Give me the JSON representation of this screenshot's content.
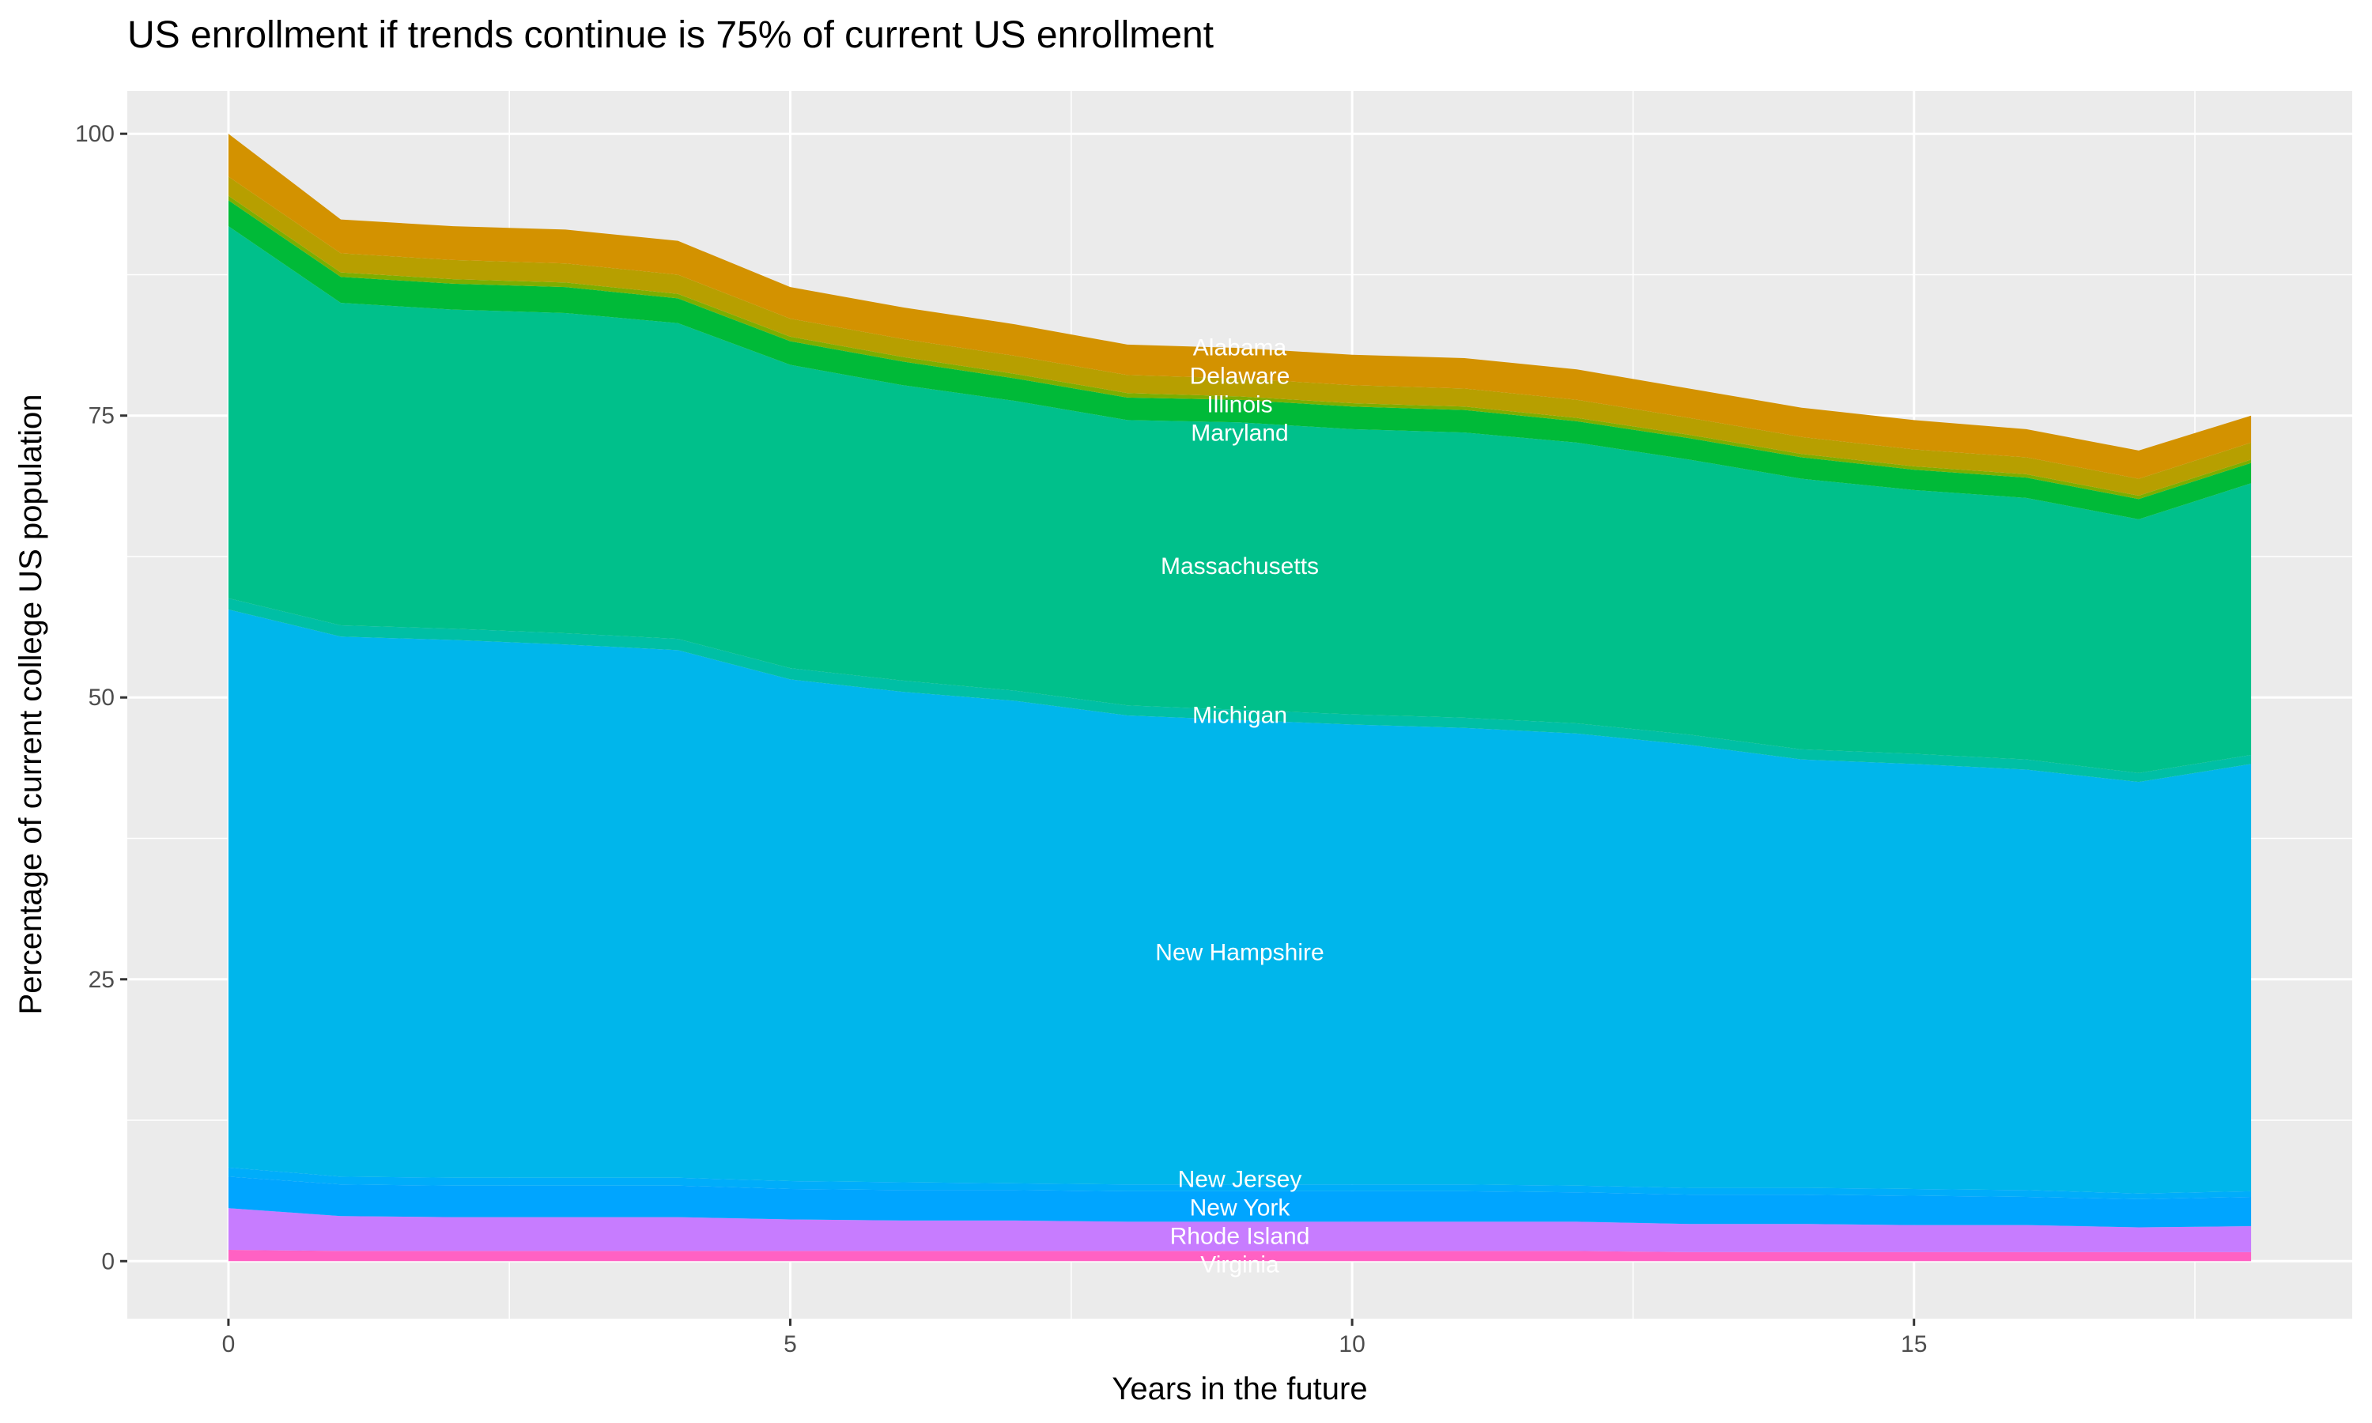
{
  "chart_data": {
    "type": "area",
    "stacked": true,
    "title": "US enrollment if trends continue is 75% of current US enrollment",
    "xlabel": "Years in the future",
    "ylabel": "Percentage of current college US population",
    "xlim": [
      -0.9,
      18.9
    ],
    "ylim": [
      -5.1,
      103.8
    ],
    "xticks": [
      0,
      5,
      10,
      15
    ],
    "yticks": [
      0,
      25,
      50,
      75,
      100
    ],
    "grid": true,
    "legend": "none",
    "label_x": 9,
    "x": [
      0,
      1,
      2,
      3,
      4,
      5,
      6,
      7,
      8,
      9,
      10,
      11,
      12,
      13,
      14,
      15,
      16,
      17,
      18
    ],
    "series": [
      {
        "name": "Virginia",
        "color": "#FF61C3",
        "values": [
          1.0,
          0.9,
          0.9,
          0.9,
          0.9,
          0.9,
          0.9,
          0.9,
          0.9,
          0.9,
          0.9,
          0.9,
          0.9,
          0.8,
          0.8,
          0.8,
          0.8,
          0.8,
          0.8
        ]
      },
      {
        "name": "Rhode Island",
        "color": "#C77CFF",
        "values": [
          3.7,
          3.1,
          3.0,
          3.0,
          3.0,
          2.8,
          2.7,
          2.7,
          2.6,
          2.6,
          2.6,
          2.6,
          2.6,
          2.5,
          2.5,
          2.4,
          2.4,
          2.2,
          2.3
        ]
      },
      {
        "name": "New York",
        "color": "#00A5FF",
        "values": [
          2.8,
          2.8,
          2.8,
          2.8,
          2.8,
          2.7,
          2.7,
          2.7,
          2.7,
          2.7,
          2.7,
          2.7,
          2.6,
          2.6,
          2.6,
          2.6,
          2.5,
          2.5,
          2.6
        ]
      },
      {
        "name": "New Jersey",
        "color": "#00ADFA",
        "values": [
          0.8,
          0.7,
          0.7,
          0.7,
          0.7,
          0.7,
          0.7,
          0.6,
          0.6,
          0.6,
          0.6,
          0.6,
          0.6,
          0.6,
          0.6,
          0.6,
          0.6,
          0.5,
          0.5
        ]
      },
      {
        "name": "New Hampshire",
        "color": "#00B6EB",
        "values": [
          49.5,
          47.9,
          47.7,
          47.3,
          46.8,
          44.5,
          43.5,
          42.8,
          41.6,
          41.2,
          40.8,
          40.5,
          40.1,
          39.3,
          38.0,
          37.7,
          37.3,
          36.5,
          37.9
        ]
      },
      {
        "name": "Michigan",
        "color": "#00BFA5",
        "values": [
          1.0,
          1.0,
          1.0,
          1.0,
          1.0,
          1.0,
          1.0,
          0.9,
          0.9,
          0.9,
          0.9,
          0.9,
          0.9,
          0.9,
          0.9,
          0.9,
          0.9,
          0.8,
          0.8
        ]
      },
      {
        "name": "Massachusetts",
        "color": "#00C08B",
        "values": [
          33.0,
          28.6,
          28.3,
          28.4,
          28.0,
          26.9,
          26.2,
          25.7,
          25.3,
          25.5,
          25.3,
          25.3,
          24.9,
          24.4,
          24.0,
          23.4,
          23.2,
          22.5,
          24.1
        ]
      },
      {
        "name": "Maryland",
        "color": "#00BA38",
        "values": [
          2.3,
          2.3,
          2.3,
          2.3,
          2.2,
          2.1,
          2.1,
          2.0,
          2.0,
          2.0,
          2.0,
          2.0,
          1.9,
          1.9,
          1.9,
          1.8,
          1.8,
          1.8,
          1.8
        ]
      },
      {
        "name": "Illinois",
        "color": "#7CAE00",
        "values": [
          0.4,
          0.4,
          0.4,
          0.4,
          0.4,
          0.4,
          0.4,
          0.4,
          0.4,
          0.3,
          0.3,
          0.3,
          0.3,
          0.3,
          0.3,
          0.3,
          0.3,
          0.3,
          0.3
        ]
      },
      {
        "name": "Delaware",
        "color": "#B79F00",
        "values": [
          1.7,
          1.7,
          1.7,
          1.7,
          1.7,
          1.6,
          1.6,
          1.6,
          1.6,
          1.6,
          1.6,
          1.6,
          1.6,
          1.5,
          1.5,
          1.5,
          1.5,
          1.5,
          1.5
        ]
      },
      {
        "name": "Alabama",
        "color": "#D39200",
        "values": [
          3.8,
          3.0,
          3.0,
          3.0,
          3.0,
          2.8,
          2.8,
          2.8,
          2.7,
          2.7,
          2.7,
          2.7,
          2.7,
          2.6,
          2.6,
          2.6,
          2.5,
          2.5,
          2.4
        ]
      }
    ],
    "panel_background": "#EBEBEB",
    "grid_color": "#FFFFFF"
  }
}
